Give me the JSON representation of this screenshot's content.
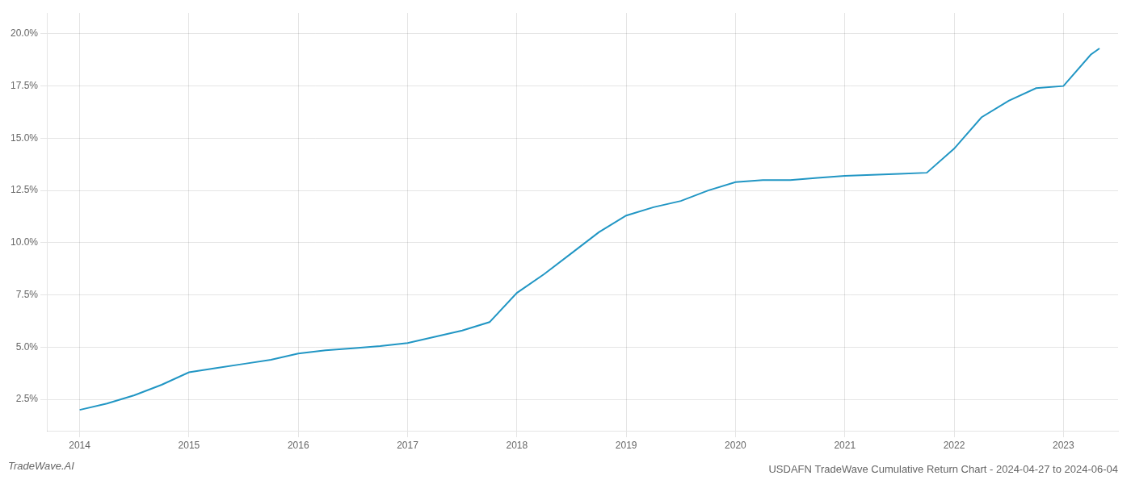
{
  "chart_data": {
    "type": "line",
    "title": "USDAFN TradeWave Cumulative Return Chart - 2024-04-27 to 2024-06-04",
    "annotations": [
      "TradeWave.AI"
    ],
    "x": [
      2014.0,
      2014.25,
      2014.5,
      2014.75,
      2015.0,
      2015.25,
      2015.5,
      2015.75,
      2016.0,
      2016.25,
      2016.5,
      2016.75,
      2017.0,
      2017.25,
      2017.5,
      2017.75,
      2018.0,
      2018.25,
      2018.5,
      2018.75,
      2019.0,
      2019.25,
      2019.5,
      2019.75,
      2020.0,
      2020.25,
      2020.5,
      2020.75,
      2021.0,
      2021.25,
      2021.5,
      2021.75,
      2022.0,
      2022.25,
      2022.5,
      2022.75,
      2023.0,
      2023.25,
      2023.33
    ],
    "values": [
      2.0,
      2.3,
      2.7,
      3.2,
      3.8,
      4.0,
      4.2,
      4.4,
      4.7,
      4.85,
      4.95,
      5.05,
      5.2,
      5.5,
      5.8,
      6.2,
      7.6,
      8.5,
      9.5,
      10.5,
      11.3,
      11.7,
      12.0,
      12.5,
      12.9,
      13.0,
      13.0,
      13.1,
      13.2,
      13.25,
      13.3,
      13.35,
      14.5,
      16.0,
      16.8,
      17.4,
      17.5,
      19.0,
      19.3
    ],
    "color": "#2196c4",
    "xlim": [
      2013.7,
      2023.5
    ],
    "xticks": [
      2014,
      2015,
      2016,
      2017,
      2018,
      2019,
      2020,
      2021,
      2022,
      2023
    ],
    "ylim": [
      1.0,
      21.0
    ],
    "yticks": [
      {
        "value": 2.5,
        "label": "2.5%"
      },
      {
        "value": 5.0,
        "label": "5.0%"
      },
      {
        "value": 7.5,
        "label": "7.5%"
      },
      {
        "value": 10.0,
        "label": "10.0%"
      },
      {
        "value": 12.5,
        "label": "12.5%"
      },
      {
        "value": 15.0,
        "label": "15.0%"
      },
      {
        "value": 17.5,
        "label": "17.5%"
      },
      {
        "value": 20.0,
        "label": "20.0%"
      }
    ],
    "grid": true
  }
}
